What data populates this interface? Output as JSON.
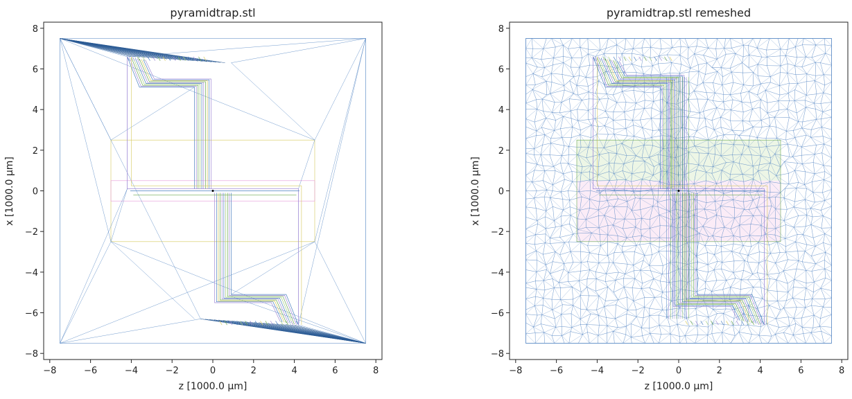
{
  "chart_data": [
    {
      "type": "mesh",
      "title": "pyramidtrap.stl",
      "xlabel": "z [1000.0 μm]",
      "ylabel": "x [1000.0 μm]",
      "xlim": [
        -8.3,
        8.3
      ],
      "ylim": [
        -8.3,
        8.3
      ],
      "xticks": [
        -8,
        -6,
        -4,
        -2,
        0,
        2,
        4,
        6,
        8
      ],
      "yticks": [
        -8,
        -6,
        -4,
        -2,
        0,
        2,
        4,
        6,
        8
      ],
      "mesh": "original",
      "grid": false
    },
    {
      "type": "mesh",
      "title": "pyramidtrap.stl remeshed",
      "xlabel": "z [1000.0 μm]",
      "ylabel": "x [1000.0 μm]",
      "xlim": [
        -8.3,
        8.3
      ],
      "ylim": [
        -8.3,
        8.3
      ],
      "xticks": [
        -8,
        -6,
        -4,
        -2,
        0,
        2,
        4,
        6,
        8
      ],
      "yticks": [
        -8,
        -6,
        -4,
        -2,
        0,
        2,
        4,
        6,
        8
      ],
      "mesh": "remeshed",
      "grid": false
    }
  ],
  "geometry": {
    "outer_square": [
      [
        -7.5,
        7.5
      ],
      [
        7.5,
        7.5
      ],
      [
        7.5,
        -7.5
      ],
      [
        -7.5,
        -7.5
      ]
    ],
    "center_rect": [
      [
        -5,
        2.5
      ],
      [
        5,
        2.5
      ],
      [
        5,
        -2.5
      ],
      [
        -5,
        -2.5
      ]
    ],
    "inner_band": [
      [
        -5,
        0.5
      ],
      [
        5,
        0.5
      ],
      [
        5,
        -0.5
      ],
      [
        -5,
        -0.5
      ]
    ],
    "electrode_path": [
      [
        -4.2,
        6.6
      ],
      [
        -4.2,
        0.1
      ],
      [
        4.2,
        0.1
      ],
      [
        4.2,
        -6.6
      ]
    ],
    "upper_arm": [
      [
        -4.2,
        6.6
      ],
      [
        0.9,
        6.3
      ],
      [
        0.9,
        -0.1
      ]
    ],
    "lower_arm": [
      [
        4.2,
        -6.6
      ],
      [
        -0.9,
        -6.3
      ],
      [
        -0.9,
        0.1
      ]
    ],
    "center_point": [
      0,
      0
    ]
  },
  "colors": {
    "blue": "#4a7fc0",
    "dark_blue": "#2a5a94",
    "green": "#6aa84f",
    "light_green": "#a8cf80",
    "purple": "#9f8ad6",
    "pink": "#e69ad9",
    "yellow": "#d6c85a",
    "axis": "#222222"
  }
}
